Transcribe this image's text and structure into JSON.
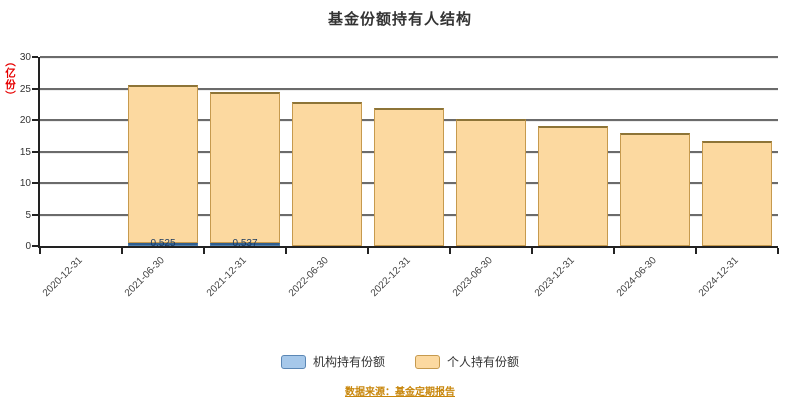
{
  "chart_data": {
    "type": "bar",
    "stacked": true,
    "title": "基金份额持有人结构",
    "y_unit_label": "（亿份）",
    "ylim": [
      0,
      30
    ],
    "ytick_step": 5,
    "grid": true,
    "legend_position": "bottom",
    "categories": [
      "2020-12-31",
      "2021-06-30",
      "2021-12-31",
      "2022-06-30",
      "2022-12-31",
      "2023-06-30",
      "2023-12-31",
      "2024-06-30",
      "2024-12-31"
    ],
    "series": [
      {
        "name": "机构持有份额",
        "color": "#a6c8ea",
        "border_color": "#4f7fae",
        "values": [
          0,
          0.525,
          0.537,
          0,
          0,
          0,
          0,
          0,
          0
        ],
        "data_labels": [
          "",
          "0.525",
          "0.537",
          "",
          "",
          "",
          "",
          "",
          ""
        ]
      },
      {
        "name": "个人持有份额",
        "color": "#fcd9a0",
        "border_color": "#c69a4e",
        "values": [
          0,
          25.1,
          23.9,
          22.9,
          21.9,
          20.2,
          19.0,
          17.9,
          16.7
        ]
      }
    ]
  },
  "legend": {
    "items": [
      {
        "label": "机构持有份额",
        "color": "#a6c8ea",
        "border": "#5b87b5"
      },
      {
        "label": "个人持有份额",
        "color": "#fcd9a0",
        "border": "#c69a4e"
      }
    ]
  },
  "footer": {
    "link_label": "数据来源：基金定期报告"
  },
  "colors": {
    "grid_dark": "#6b6b6b",
    "grid_light": "#ededed",
    "axis": "#222222",
    "unit_red": "#e60000",
    "bar_label_navy": "#17375e",
    "link_orange": "#c8860a",
    "text": "#333333"
  }
}
